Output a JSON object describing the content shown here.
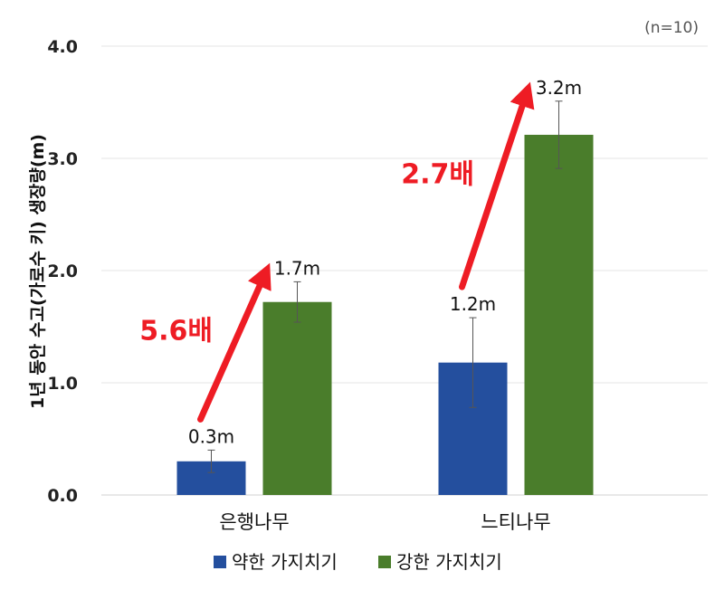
{
  "chart_data": {
    "type": "bar",
    "note": "(n=10)",
    "ylabel": "1년 동안 수고(가로수 키) 생장량(m)",
    "ylim": [
      0,
      4
    ],
    "yticks": [
      "0.0",
      "1.0",
      "2.0",
      "3.0",
      "4.0"
    ],
    "ytick_values": [
      0,
      1,
      2,
      3,
      4
    ],
    "grid": true,
    "legend_position": "bottom",
    "categories": [
      "은행나무",
      "느티나무"
    ],
    "series": [
      {
        "name": "약한 가지치기",
        "color": "#244f9e",
        "values": [
          0.3,
          1.18
        ],
        "errors": [
          0.1,
          0.4
        ],
        "labels": [
          "0.3m",
          "1.2m"
        ]
      },
      {
        "name": "강한 가지치기",
        "color": "#4a7d2b",
        "values": [
          1.72,
          3.21
        ],
        "errors": [
          0.18,
          0.3
        ],
        "labels": [
          "1.7m",
          "3.2m"
        ]
      }
    ],
    "annotations": [
      {
        "text": "5.6배",
        "category": 0
      },
      {
        "text": "2.7배",
        "category": 1
      }
    ],
    "arrow_color": "#ee1c24"
  }
}
